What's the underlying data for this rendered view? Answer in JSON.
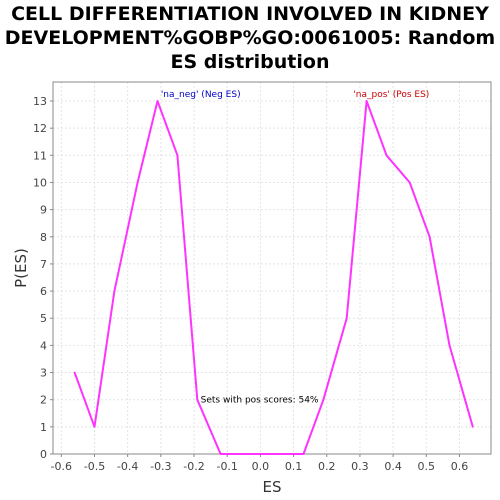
{
  "chart_data": {
    "type": "line",
    "title_lines": [
      "CELL DIFFERENTIATION INVOLVED IN KIDNEY",
      "DEVELOPMENT%GOBP%GO:0061005: Random",
      "ES distribution"
    ],
    "xlabel": "ES",
    "ylabel": "P(ES)",
    "xlim": [
      -0.625,
      0.695
    ],
    "ylim": [
      0,
      13.7
    ],
    "x_ticks": [
      -0.6,
      -0.5,
      -0.4,
      -0.3,
      -0.2,
      -0.1,
      0.0,
      0.1,
      0.2,
      0.3,
      0.4,
      0.5,
      0.6
    ],
    "x_tick_labels": [
      "-0.6",
      "-0.5",
      "-0.4",
      "-0.3",
      "-0.2",
      "-0.1",
      "0.0",
      "0.1",
      "0.2",
      "0.3",
      "0.4",
      "0.5",
      "0.6"
    ],
    "y_ticks": [
      0,
      1,
      2,
      3,
      4,
      5,
      6,
      7,
      8,
      9,
      10,
      11,
      12,
      13
    ],
    "y_tick_labels": [
      "0",
      "1",
      "2",
      "3",
      "4",
      "5",
      "6",
      "7",
      "8",
      "9",
      "10",
      "11",
      "12",
      "13"
    ],
    "grid": true,
    "series": [
      {
        "color": "#ff33ff",
        "x": [
          -0.56,
          -0.5,
          -0.44,
          -0.37,
          -0.31,
          -0.25,
          -0.19,
          -0.12,
          0.13,
          0.19,
          0.26,
          0.32,
          0.38,
          0.45,
          0.51,
          0.57,
          0.64
        ],
        "y": [
          3,
          1,
          6,
          10,
          13,
          11,
          2,
          0,
          0,
          2,
          5,
          13,
          11,
          10,
          8,
          4,
          1
        ]
      }
    ],
    "annotations": [
      {
        "text": "'na_neg' (Neg ES)",
        "x": -0.3,
        "y": 13.15,
        "color": "#0000cc"
      },
      {
        "text": "'na_pos' (Pos ES)",
        "x": 0.28,
        "y": 13.15,
        "color": "#cc0000"
      },
      {
        "text": "Sets with pos scores: 54%",
        "x": -0.18,
        "y": 1.9,
        "color": "#000000"
      }
    ]
  }
}
